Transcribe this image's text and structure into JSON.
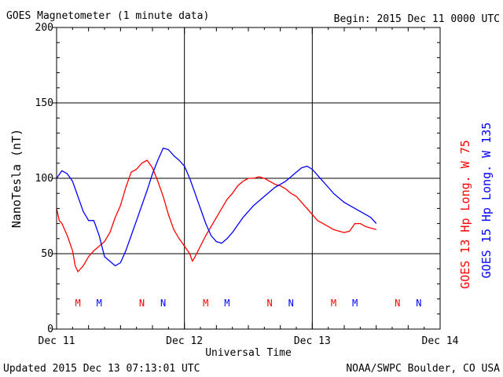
{
  "header": {
    "title": "GOES Magnetometer (1 minute data)",
    "begin": "Begin:  2015 Dec 11 0000 UTC"
  },
  "footer": {
    "updated": "Updated 2015 Dec 13 07:13:01 UTC",
    "credit": "NOAA/SWPC Boulder, CO USA"
  },
  "chart_data": {
    "type": "line",
    "title": "GOES Magnetometer (1 minute data)",
    "xlabel": "Universal Time",
    "ylabel": "NanoTesla (nT)",
    "xlim": [
      0,
      72
    ],
    "ylim": [
      0,
      200
    ],
    "x_unit": "hours since 2015 Dec 11 0000 UTC",
    "x_ticks": [
      {
        "value": 0,
        "label": "Dec 11"
      },
      {
        "value": 24,
        "label": "Dec 12"
      },
      {
        "value": 48,
        "label": "Dec 13"
      },
      {
        "value": 72,
        "label": "Dec 14"
      }
    ],
    "y_ticks": [
      0,
      50,
      100,
      150,
      200
    ],
    "grid": true,
    "series": [
      {
        "name": "GOES 13 Hp  Long. W 75",
        "color": "#ff0000",
        "x": [
          0,
          0.5,
          1,
          2,
          3,
          3.5,
          4,
          5,
          6,
          7,
          8,
          9,
          10,
          11,
          12,
          13,
          14,
          15,
          16,
          17,
          18,
          19,
          20,
          21,
          22,
          23,
          24,
          25,
          25.5,
          26,
          27,
          28,
          29,
          30,
          31,
          32,
          33,
          34,
          35,
          36,
          37,
          38,
          39,
          40,
          41,
          42,
          43,
          44,
          45,
          46,
          47,
          48,
          49,
          50,
          51,
          52,
          53,
          54,
          55,
          56,
          57,
          58,
          59,
          60
        ],
        "values": [
          80,
          72,
          70,
          62,
          52,
          42,
          38,
          42,
          48,
          52,
          55,
          58,
          64,
          74,
          82,
          94,
          104,
          106,
          110,
          112,
          107,
          98,
          88,
          76,
          66,
          60,
          55,
          50,
          45,
          48,
          55,
          62,
          68,
          74,
          80,
          86,
          90,
          95,
          98,
          100,
          100,
          101,
          100,
          98,
          96,
          95,
          93,
          90,
          88,
          84,
          80,
          76,
          72,
          70,
          68,
          66,
          65,
          64,
          65,
          70,
          70,
          68,
          67,
          66
        ]
      },
      {
        "name": "GOES 15 Hp  Long. W 135",
        "color": "#0000ff",
        "x": [
          0,
          1,
          2,
          3,
          4,
          5,
          6,
          7,
          8,
          9,
          10,
          11,
          12,
          13,
          14,
          15,
          16,
          17,
          18,
          19,
          20,
          21,
          22,
          23,
          24,
          25,
          26,
          27,
          28,
          29,
          30,
          31,
          32,
          33,
          34,
          35,
          36,
          37,
          38,
          39,
          40,
          41,
          42,
          43,
          44,
          45,
          46,
          47,
          48,
          49,
          50,
          51,
          52,
          53,
          54,
          55,
          56,
          57,
          58,
          59,
          60
        ],
        "values": [
          100,
          105,
          103,
          98,
          88,
          78,
          72,
          72,
          62,
          48,
          45,
          42,
          44,
          52,
          62,
          72,
          82,
          92,
          103,
          112,
          120,
          119,
          115,
          112,
          108,
          100,
          90,
          80,
          70,
          62,
          58,
          57,
          60,
          64,
          69,
          74,
          78,
          82,
          85,
          88,
          91,
          94,
          96,
          98,
          101,
          104,
          107,
          108,
          106,
          102,
          98,
          94,
          90,
          87,
          84,
          82,
          80,
          78,
          76,
          74,
          70
        ]
      }
    ],
    "markers": [
      {
        "label": "M",
        "x": 4,
        "color": "#ff0000"
      },
      {
        "label": "M",
        "x": 8,
        "color": "#0000ff"
      },
      {
        "label": "N",
        "x": 16,
        "color": "#ff0000"
      },
      {
        "label": "N",
        "x": 20,
        "color": "#0000ff"
      },
      {
        "label": "M",
        "x": 28,
        "color": "#ff0000"
      },
      {
        "label": "M",
        "x": 32,
        "color": "#0000ff"
      },
      {
        "label": "N",
        "x": 40,
        "color": "#ff0000"
      },
      {
        "label": "N",
        "x": 44,
        "color": "#0000ff"
      },
      {
        "label": "M",
        "x": 52,
        "color": "#ff0000"
      },
      {
        "label": "M",
        "x": 56,
        "color": "#0000ff"
      },
      {
        "label": "N",
        "x": 64,
        "color": "#ff0000"
      },
      {
        "label": "N",
        "x": 68,
        "color": "#0000ff"
      }
    ]
  }
}
